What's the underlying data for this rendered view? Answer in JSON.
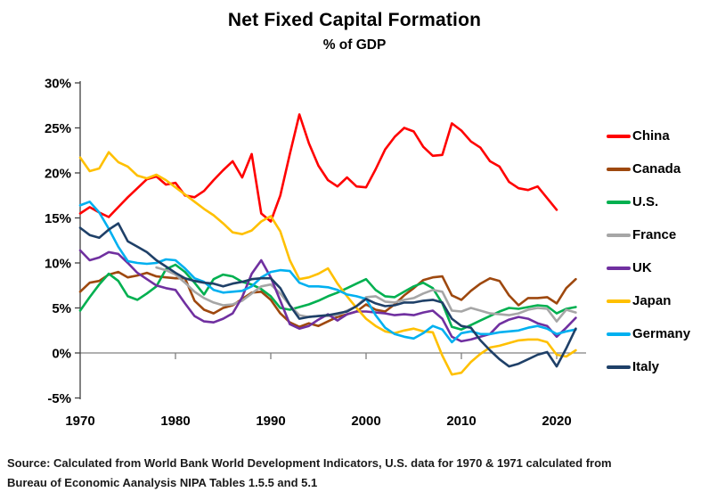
{
  "header": {
    "title": "Net Fixed Capital Formation",
    "subtitle": "% of GDP"
  },
  "source": {
    "line1": "Source:  Calculated from World Bank World Development Indicators, U.S. data for 1970 & 1971 calculated from",
    "line2": "Bureau of Economic Aanalysis NIPA Tables 1.5.5 and 5.1"
  },
  "chart_data": {
    "type": "line",
    "title": "Net Fixed Capital Formation",
    "subtitle": "% of GDP",
    "xlabel": "",
    "ylabel": "% of GDP",
    "x_range": [
      1970,
      2022
    ],
    "ylim": [
      -5,
      30
    ],
    "x_ticks": [
      1970,
      1980,
      1990,
      2000,
      2010,
      2020
    ],
    "y_tick_values": [
      30,
      25,
      20,
      15,
      10,
      5,
      0,
      -5
    ],
    "y_tick_labels": [
      "30%",
      "25%",
      "20%",
      "15%",
      "10%",
      "5%",
      "0%",
      "-5%"
    ],
    "grid": "zero-baseline-only",
    "legend_position": "right",
    "axis_color": "#404040",
    "zero_line_color": "#808080",
    "series": [
      {
        "name": "China",
        "color": "#FF0000",
        "start_year": 1970,
        "values": [
          15.5,
          16.2,
          15.6,
          15.1,
          16.2,
          17.3,
          18.3,
          19.3,
          19.6,
          18.7,
          18.9,
          17.5,
          17.3,
          18.0,
          19.2,
          20.3,
          21.3,
          19.5,
          22.1,
          15.5,
          14.6,
          17.5,
          22.1,
          26.5,
          23.3,
          20.8,
          19.2,
          18.5,
          19.5,
          18.5,
          18.4,
          20.4,
          22.6,
          24.0,
          25.0,
          24.6,
          22.9,
          21.9,
          22.0,
          25.5,
          24.7,
          23.5,
          22.8,
          21.3,
          20.7,
          19.0,
          18.3,
          18.1,
          18.5,
          17.2,
          15.9
        ]
      },
      {
        "name": "Canada",
        "color": "#9E480E",
        "start_year": 1970,
        "values": [
          6.8,
          7.8,
          8.0,
          8.7,
          9.0,
          8.4,
          8.6,
          8.9,
          8.5,
          8.4,
          8.3,
          8.3,
          5.8,
          4.8,
          4.4,
          5.0,
          5.3,
          6.0,
          6.7,
          6.8,
          5.9,
          4.4,
          3.4,
          2.9,
          3.3,
          3.0,
          3.5,
          4.0,
          4.3,
          4.6,
          5.4,
          4.8,
          4.6,
          5.4,
          6.4,
          7.2,
          8.1,
          8.4,
          8.5,
          6.4,
          5.9,
          6.9,
          7.7,
          8.3,
          8.0,
          6.4,
          5.3,
          6.1,
          6.1,
          6.2,
          5.5,
          7.2,
          8.2
        ]
      },
      {
        "name": "U.S.",
        "color": "#00B050",
        "start_year": 1970,
        "values": [
          4.7,
          6.2,
          7.6,
          8.8,
          8.0,
          6.3,
          5.9,
          6.6,
          7.4,
          9.3,
          9.8,
          9.0,
          7.8,
          6.5,
          8.2,
          8.7,
          8.5,
          7.9,
          7.6,
          7.1,
          6.3,
          5.0,
          4.8,
          5.1,
          5.4,
          5.8,
          6.3,
          6.7,
          7.2,
          7.7,
          8.2,
          7.0,
          6.3,
          6.2,
          6.8,
          7.4,
          7.8,
          7.2,
          5.5,
          2.9,
          2.6,
          3.1,
          3.6,
          4.1,
          4.6,
          5.0,
          4.9,
          5.1,
          5.3,
          5.2,
          4.4,
          4.9,
          5.1
        ]
      },
      {
        "name": "France",
        "color": "#A6A6A6",
        "start_year": 1978,
        "values": [
          9.5,
          9.2,
          8.7,
          7.8,
          6.8,
          6.1,
          5.6,
          5.3,
          5.4,
          5.8,
          6.6,
          7.4,
          7.6,
          6.6,
          5.3,
          4.2,
          4.0,
          4.1,
          4.1,
          4.2,
          4.7,
          5.2,
          6.2,
          6.3,
          5.7,
          5.6,
          5.9,
          6.1,
          6.6,
          7.0,
          6.8,
          4.7,
          4.6,
          5.0,
          4.7,
          4.4,
          4.3,
          4.2,
          4.4,
          4.8,
          5.0,
          4.9,
          3.5,
          4.8,
          4.5
        ]
      },
      {
        "name": "UK",
        "color": "#7030A0",
        "start_year": 1970,
        "values": [
          11.4,
          10.3,
          10.6,
          11.2,
          11.0,
          10.0,
          8.9,
          8.2,
          7.5,
          7.2,
          7.0,
          5.5,
          4.1,
          3.5,
          3.4,
          3.8,
          4.4,
          6.2,
          8.8,
          10.3,
          8.4,
          5.8,
          3.2,
          2.7,
          3.0,
          3.7,
          4.3,
          3.6,
          4.3,
          4.6,
          4.6,
          4.5,
          4.4,
          4.2,
          4.3,
          4.2,
          4.5,
          4.7,
          3.8,
          1.8,
          1.3,
          1.5,
          1.8,
          2.1,
          3.2,
          3.7,
          4.0,
          3.8,
          3.3,
          3.0,
          1.8,
          2.8,
          3.9
        ]
      },
      {
        "name": "Japan",
        "color": "#FFC000",
        "start_year": 1970,
        "values": [
          21.7,
          20.2,
          20.5,
          22.3,
          21.2,
          20.7,
          19.7,
          19.4,
          19.8,
          19.2,
          18.4,
          17.6,
          16.8,
          16.0,
          15.3,
          14.4,
          13.4,
          13.2,
          13.6,
          14.6,
          15.2,
          13.5,
          10.3,
          8.2,
          8.4,
          8.8,
          9.4,
          7.7,
          6.3,
          5.0,
          3.8,
          3.0,
          2.4,
          2.2,
          2.5,
          2.7,
          2.4,
          2.3,
          -0.3,
          -2.4,
          -2.2,
          -1.0,
          -0.1,
          0.6,
          0.8,
          1.1,
          1.4,
          1.5,
          1.5,
          1.2,
          -0.2,
          -0.4,
          0.3
        ]
      },
      {
        "name": "Germany",
        "color": "#00B0F0",
        "start_year": 1970,
        "values": [
          16.4,
          16.8,
          15.6,
          13.8,
          11.8,
          10.2,
          10.0,
          9.9,
          10.0,
          10.4,
          10.3,
          9.4,
          8.3,
          7.9,
          7.0,
          6.7,
          6.8,
          6.9,
          7.4,
          8.4,
          9.0,
          9.2,
          9.1,
          7.8,
          7.4,
          7.4,
          7.3,
          7.0,
          6.5,
          6.3,
          6.0,
          4.2,
          2.8,
          2.1,
          1.8,
          1.6,
          2.2,
          3.0,
          2.6,
          1.2,
          2.2,
          2.4,
          2.1,
          2.1,
          2.3,
          2.4,
          2.5,
          2.8,
          3.0,
          2.7,
          2.1,
          2.4,
          2.6
        ]
      },
      {
        "name": "Italy",
        "color": "#1F4068",
        "start_year": 1970,
        "values": [
          13.9,
          13.1,
          12.8,
          13.7,
          14.4,
          12.4,
          11.8,
          11.2,
          10.3,
          9.6,
          8.9,
          8.3,
          8.0,
          7.8,
          7.7,
          7.4,
          7.7,
          7.9,
          8.2,
          8.3,
          8.3,
          7.2,
          5.3,
          3.8,
          4.0,
          4.1,
          4.2,
          4.4,
          4.6,
          5.2,
          6.0,
          5.5,
          5.2,
          5.3,
          5.6,
          5.6,
          5.8,
          5.9,
          5.6,
          3.8,
          3.0,
          2.8,
          1.4,
          0.3,
          -0.7,
          -1.5,
          -1.2,
          -0.7,
          -0.2,
          0.1,
          -1.5,
          0.5,
          2.7
        ]
      }
    ]
  }
}
